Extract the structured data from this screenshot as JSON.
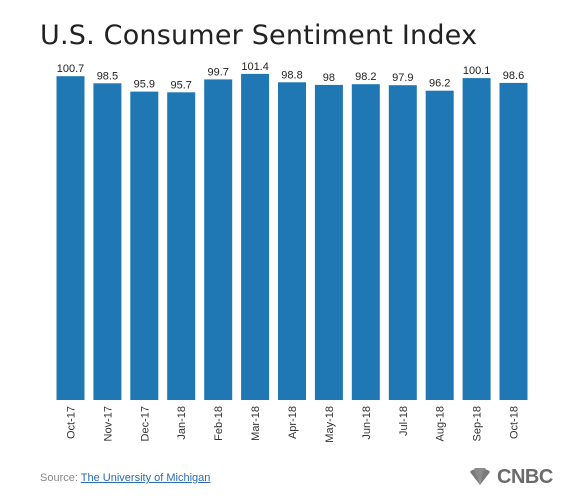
{
  "chart_data": {
    "type": "bar",
    "title": "U.S. Consumer Sentiment Index",
    "categories": [
      "Oct-17",
      "Nov-17",
      "Dec-17",
      "Jan-18",
      "Feb-18",
      "Mar-18",
      "Apr-18",
      "May-18",
      "Jun-18",
      "Jul-18",
      "Aug-18",
      "Sep-18",
      "Oct-18"
    ],
    "values": [
      100.7,
      98.5,
      95.9,
      95.7,
      99.7,
      101.4,
      98.8,
      98,
      98.2,
      97.9,
      96.2,
      100.1,
      98.6
    ],
    "value_labels": [
      "100.7",
      "98.5",
      "95.9",
      "95.7",
      "99.7",
      "101.4",
      "98.8",
      "98",
      "98.2",
      "97.9",
      "96.2",
      "100.1",
      "98.6"
    ],
    "xlabel": "",
    "ylabel": "",
    "ylim": [
      0,
      102
    ],
    "grid": false,
    "bar_color": "#1f77b4"
  },
  "footer": {
    "source_prefix": "Source: ",
    "source_link": "The University of Michigan"
  },
  "logo": {
    "text": "CNBC",
    "icon": "peacock-icon"
  }
}
